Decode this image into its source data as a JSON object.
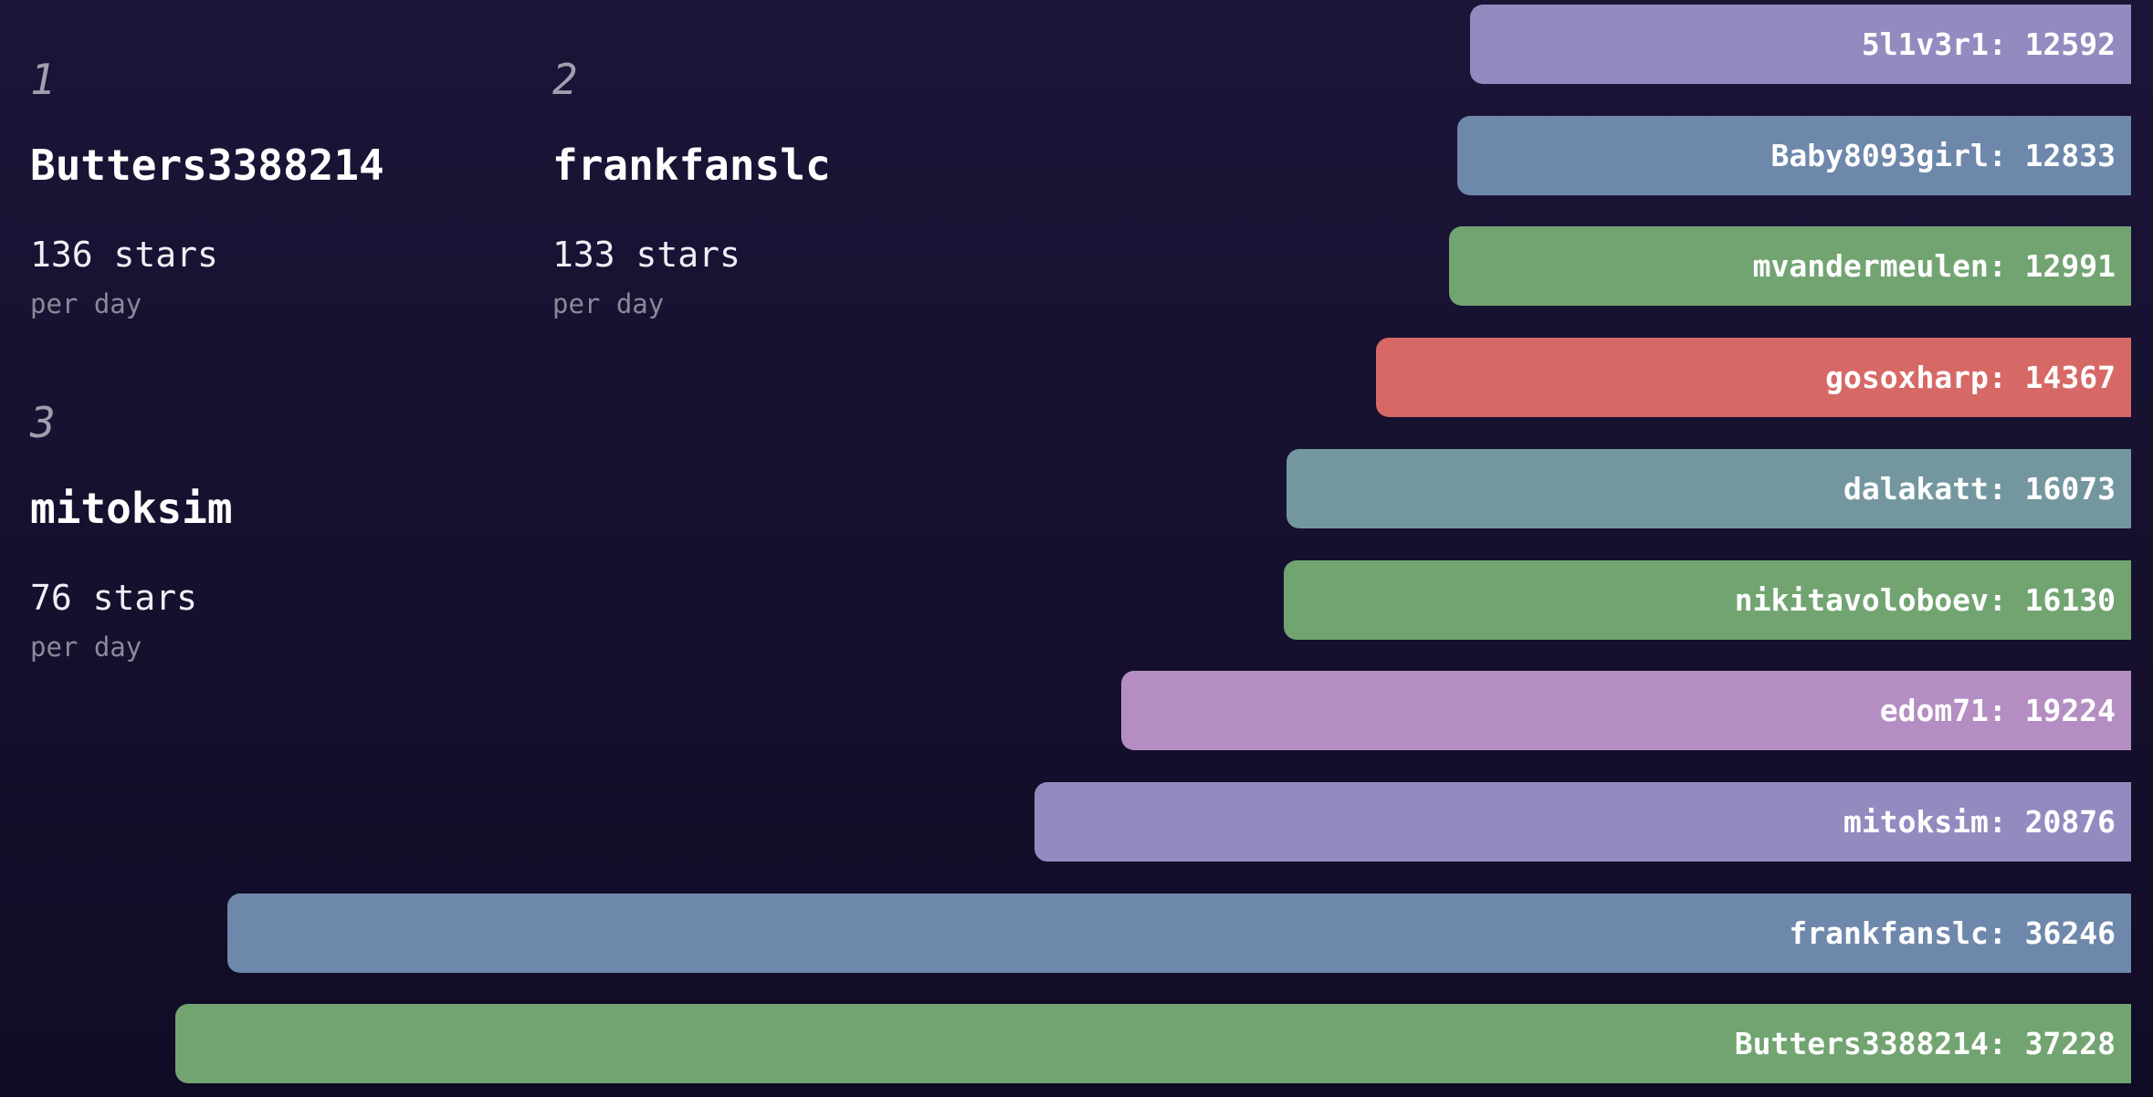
{
  "page": {
    "background_top": "#1b1437",
    "background_bottom": "#100b26"
  },
  "rankings": [
    {
      "rank": "1",
      "name": "Butters3388214",
      "rate": "136 stars",
      "unit": "per day",
      "col": 0,
      "row": 0
    },
    {
      "rank": "2",
      "name": "frankfanslc",
      "rate": "133 stars",
      "unit": "per day",
      "col": 1,
      "row": 0
    },
    {
      "rank": "3",
      "name": "mitoksim",
      "rate": "76 stars",
      "unit": "per day",
      "col": 0,
      "row": 1
    }
  ],
  "chart_data": {
    "type": "bar",
    "orientation": "horizontal",
    "title": "",
    "xlabel": "",
    "ylabel": "",
    "grid": false,
    "legend": false,
    "bars_right_aligned": true,
    "value_axis_max": 37228,
    "label_format": "{name}: {value}",
    "bars": [
      {
        "label": "5l1v3r1",
        "value": 12592,
        "color": "#938bc0"
      },
      {
        "label": "Baby8093girl",
        "value": 12833,
        "color": "#6e88ab"
      },
      {
        "label": "mvandermeulen",
        "value": 12991,
        "color": "#72a471"
      },
      {
        "label": "gosoxharp",
        "value": 14367,
        "color": "#d66966"
      },
      {
        "label": "dalakatt",
        "value": 16073,
        "color": "#74979f"
      },
      {
        "label": "nikitavoloboev",
        "value": 16130,
        "color": "#72a471"
      },
      {
        "label": "edom71",
        "value": 19224,
        "color": "#b48ec2"
      },
      {
        "label": "mitoksim",
        "value": 20876,
        "color": "#938bc0"
      },
      {
        "label": "frankfanslc",
        "value": 36246,
        "color": "#6e88ab"
      },
      {
        "label": "Butters3388214",
        "value": 37228,
        "color": "#72a471"
      }
    ]
  }
}
